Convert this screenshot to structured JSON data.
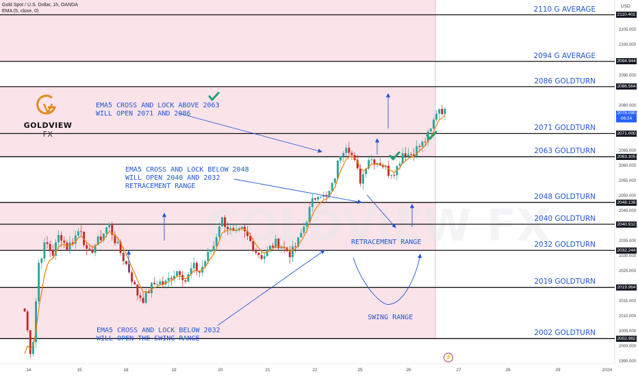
{
  "header": {
    "title": "Gold Spot / U.S. Dollar, 1h, OANDA",
    "indicator": "EMA (5, close, 0)",
    "currency": "USD"
  },
  "logo": {
    "brand": "GOLDVIEW",
    "suffix": "FX",
    "color": "#e08a1e"
  },
  "watermark": "GOLDVIEW FX",
  "annotations": {
    "note1": [
      "EMA5 CROSS AND LOCK ABOVE 2063",
      "WILL OPEN 2071 AND 2086"
    ],
    "note2": [
      "EMA5 CROSS AND LOCK BELOW 2048",
      "WILL OPEN 2040 AND 2032",
      "RETRACEMENT RANGE"
    ],
    "note3": [
      "EMA5 CROSS AND LOCK BELOW 2032",
      "WILL OPEN THE SWING RANGE"
    ],
    "retracement": "RETRACEMENT RANGE",
    "swing": "SWING RANGE"
  },
  "price_axis": {
    "current_price": "2078.090",
    "countdown": "06:24",
    "level_tags": [
      "2110.402",
      "2094.944",
      "2086.564",
      "2071.000",
      "2063.305",
      "2048.136",
      "2040.912",
      "2032.244",
      "2019.964",
      "2002.982"
    ]
  },
  "chart_data": {
    "type": "candlestick",
    "title": "Gold Spot / U.S. Dollar, 1h, OANDA",
    "ylim": [
      1993,
      2116
    ],
    "y_ticks": [
      1995,
      2000,
      2005,
      2010,
      2015,
      2020,
      2025,
      2030,
      2035,
      2040,
      2045,
      2050,
      2055,
      2060,
      2065,
      2070,
      2075,
      2080,
      2085,
      2090,
      2095,
      2100,
      2105
    ],
    "x_ticks": [
      "14",
      "15",
      "18",
      "19",
      "20",
      "21",
      "22",
      "25",
      "26",
      "27",
      "28",
      "29",
      "2024",
      "2"
    ],
    "levels": [
      {
        "label": "2110 G AVERAGE",
        "value": 2110.402
      },
      {
        "label": "2094 G AVERAGE",
        "value": 2094.944
      },
      {
        "label": "2086 GOLDTURN",
        "value": 2086.564
      },
      {
        "label": "2071 GOLDTURN",
        "value": 2071.0
      },
      {
        "label": "2063 GOLDTURN",
        "value": 2063.305
      },
      {
        "label": "2048 GOLDTURN",
        "value": 2048.136
      },
      {
        "label": "2040 GOLDTURN",
        "value": 2040.912
      },
      {
        "label": "2032 GOLDTURN",
        "value": 2032.244
      },
      {
        "label": "2019 GOLDTURN",
        "value": 2019.964
      },
      {
        "label": "2002 GOLDTURN",
        "value": 2002.982
      }
    ],
    "zones": [
      [
        2094.944,
        2116
      ],
      [
        2071.0,
        2086.564
      ],
      [
        2063.305,
        2071.0
      ],
      [
        2032.244,
        2048.136
      ],
      [
        2002.982,
        2019.964
      ]
    ],
    "price_path": [
      2012,
      1996,
      2028,
      2035,
      2031,
      2038,
      2033,
      2036,
      2040,
      2030,
      2034,
      2037,
      2041,
      2035,
      2030,
      2025,
      2018,
      2016,
      2020,
      2022,
      2021,
      2024,
      2026,
      2022,
      2027,
      2025,
      2030,
      2034,
      2043,
      2040,
      2037,
      2039,
      2036,
      2032,
      2030,
      2033,
      2035,
      2033,
      2031,
      2035,
      2041,
      2048,
      2052,
      2049,
      2054,
      2064,
      2068,
      2062,
      2055,
      2063,
      2062,
      2061,
      2058,
      2059,
      2065,
      2064,
      2066,
      2068,
      2072,
      2080,
      2078
    ],
    "ema": {
      "name": "EMA (5, close, 0)",
      "color": "#f57c00"
    },
    "colors": {
      "up": "#26a69a",
      "down": "#c62828",
      "zone": "#fbe3ea",
      "annotation": "#1e56d6"
    }
  }
}
